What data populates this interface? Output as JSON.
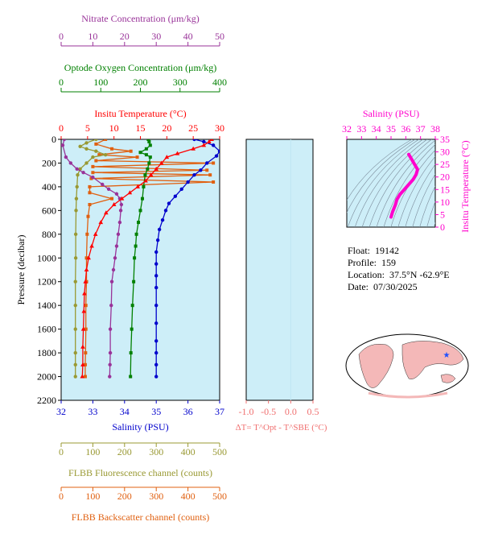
{
  "info": {
    "float_label": "Float:",
    "float_value": "19142",
    "profile_label": "Profile:",
    "profile_value": "159",
    "location_label": "Location:",
    "location_value": "37.5°N  -62.9°E",
    "date_label": "Date:",
    "date_value": "07/30/2025"
  },
  "colors": {
    "panel_bg": "#cdeef8",
    "temperature": "#ff0000",
    "salinity": "#0000cc",
    "oxygen": "#008000",
    "nitrate": "#993399",
    "fluorescence": "#999933",
    "backscatter": "#e06010",
    "ts_curve": "#ff00cc"
  },
  "chart_data": [
    {
      "type": "line",
      "id": "main-profile",
      "ylabel": "Pressure (decibar)",
      "ylim": [
        2200,
        0
      ],
      "y_ticks": [
        0,
        200,
        400,
        600,
        800,
        1000,
        1200,
        1400,
        1600,
        1800,
        2000,
        2200
      ],
      "axes": {
        "salinity": {
          "label": "Salinity (PSU)",
          "range": [
            32,
            37
          ],
          "ticks": [
            32,
            33,
            34,
            35,
            36,
            37
          ]
        },
        "temperature": {
          "label": "Insitu Temperature (°C)",
          "range": [
            0,
            30
          ],
          "ticks": [
            0,
            5,
            10,
            15,
            20,
            25,
            30
          ]
        },
        "oxygen": {
          "label": "Optode Oxygen Concentration (μm/kg)",
          "range": [
            0,
            400
          ],
          "ticks": [
            0,
            100,
            200,
            300,
            400
          ]
        },
        "nitrate": {
          "label": "Nitrate Concentration (μm/kg)",
          "range": [
            0,
            50
          ],
          "ticks": [
            0,
            10,
            20,
            30,
            40,
            50
          ]
        },
        "fluorescence": {
          "label": "FLBB Fluorescence channel (counts)",
          "range": [
            0,
            500
          ],
          "ticks": [
            0,
            100,
            200,
            300,
            400,
            500
          ]
        },
        "backscatter": {
          "label": "FLBB Backscatter channel (counts)",
          "range": [
            0,
            500
          ],
          "ticks": [
            0,
            100,
            200,
            300,
            400,
            500
          ]
        }
      },
      "series": [
        {
          "key": "salinity",
          "marker": "circle",
          "x": [
            36.2,
            36.5,
            36.8,
            37.0,
            36.9,
            36.6,
            36.4,
            36.2,
            36.0,
            35.8,
            35.6,
            35.4,
            35.3,
            35.2,
            35.1,
            35.05,
            35.0,
            35.0,
            35.0,
            35.0,
            35.0,
            35.0,
            35.0,
            35.0,
            35.0,
            35.0
          ],
          "y": [
            0,
            20,
            50,
            100,
            140,
            200,
            260,
            300,
            360,
            420,
            480,
            540,
            600,
            680,
            760,
            850,
            950,
            1050,
            1150,
            1250,
            1400,
            1550,
            1700,
            1800,
            1900,
            2000
          ]
        },
        {
          "key": "temperature",
          "marker": "triangle",
          "x": [
            28.5,
            28.0,
            27.0,
            25.0,
            22.0,
            20.0,
            19.0,
            18.0,
            17.0,
            16.0,
            14.5,
            13.0,
            11.5,
            10.0,
            8.5,
            7.5,
            6.5,
            5.8,
            5.2,
            4.8,
            4.6,
            4.4,
            4.3,
            4.2,
            4.1,
            4.1,
            4.0
          ],
          "y": [
            0,
            20,
            50,
            80,
            120,
            150,
            200,
            250,
            300,
            350,
            400,
            450,
            500,
            550,
            620,
            700,
            800,
            900,
            1000,
            1100,
            1200,
            1300,
            1450,
            1600,
            1750,
            1900,
            2000
          ]
        },
        {
          "key": "oxygen",
          "marker": "square",
          "x": [
            220,
            222,
            225,
            215,
            200,
            215,
            225,
            222,
            218,
            212,
            208,
            205,
            200,
            195,
            190,
            188,
            185,
            183,
            180,
            178,
            176,
            175
          ],
          "y": [
            0,
            20,
            50,
            80,
            110,
            130,
            150,
            200,
            250,
            300,
            400,
            500,
            600,
            700,
            800,
            900,
            1000,
            1200,
            1400,
            1600,
            1800,
            2000
          ]
        },
        {
          "key": "nitrate",
          "marker": "circle",
          "x": [
            1.0,
            0.5,
            1.5,
            3.0,
            5.0,
            7.0,
            10.0,
            13.0,
            15.0,
            17.5,
            18.5,
            19.0,
            18.8,
            18.5,
            18.0,
            17.5,
            17.0,
            16.5,
            16.0,
            15.8,
            15.5,
            15.5,
            15.4,
            15.3
          ],
          "y": [
            0,
            50,
            150,
            200,
            250,
            280,
            320,
            380,
            420,
            460,
            500,
            550,
            600,
            700,
            800,
            900,
            1000,
            1100,
            1200,
            1400,
            1600,
            1800,
            1900,
            2000
          ]
        },
        {
          "key": "fluorescence",
          "marker": "circle",
          "x": [
            110,
            80,
            60,
            80,
            110,
            140,
            100,
            80,
            60,
            52,
            50,
            48,
            47,
            46,
            46,
            45,
            45,
            45,
            45,
            45,
            45
          ],
          "y": [
            0,
            30,
            60,
            80,
            100,
            130,
            150,
            200,
            250,
            300,
            400,
            500,
            600,
            800,
            1000,
            1200,
            1400,
            1600,
            1800,
            1900,
            2000
          ]
        },
        {
          "key": "backscatter",
          "marker": "square",
          "x": [
            140,
            110,
            160,
            220,
            120,
            240,
            110,
            480,
            100,
            460,
            100,
            470,
            95,
            480,
            90,
            90,
            160,
            90,
            85,
            82,
            80,
            80,
            78,
            78,
            77,
            76,
            76
          ],
          "y": [
            0,
            40,
            80,
            100,
            130,
            150,
            180,
            200,
            230,
            260,
            280,
            300,
            330,
            360,
            400,
            450,
            500,
            550,
            650,
            800,
            1000,
            1200,
            1400,
            1600,
            1800,
            1900,
            2000
          ]
        }
      ]
    },
    {
      "type": "line",
      "id": "delta-t",
      "xlabel": "ΔT= T^Opt - T^SBE (°C)",
      "x_ticks": [
        -1.0,
        -0.5,
        0.0,
        0.5
      ],
      "xlim": [
        -1.0,
        0.5
      ],
      "ylim": [
        2200,
        0
      ],
      "series": []
    },
    {
      "type": "line",
      "id": "ts-diagram",
      "xlabel": "Salinity (PSU)",
      "ylabel": "Insitu Temperature (°C)",
      "xlim": [
        32,
        38
      ],
      "ylim": [
        0,
        35
      ],
      "x_ticks": [
        32,
        33,
        34,
        35,
        36,
        37,
        38
      ],
      "y_ticks": [
        0,
        5,
        10,
        15,
        20,
        25,
        30,
        35
      ],
      "grid": "density contours",
      "series": [
        {
          "key": "ts",
          "x": [
            36.2,
            36.4,
            36.6,
            36.8,
            36.7,
            36.5,
            36.2,
            35.9,
            35.6,
            35.4,
            35.3,
            35.2,
            35.1,
            35.05,
            35.0
          ],
          "y": [
            29,
            27,
            25,
            23,
            21,
            19,
            17,
            15,
            13,
            11,
            9,
            7.5,
            6,
            5,
            4
          ]
        }
      ]
    }
  ],
  "map": {
    "type": "world-map",
    "marker": "float-position-star"
  }
}
